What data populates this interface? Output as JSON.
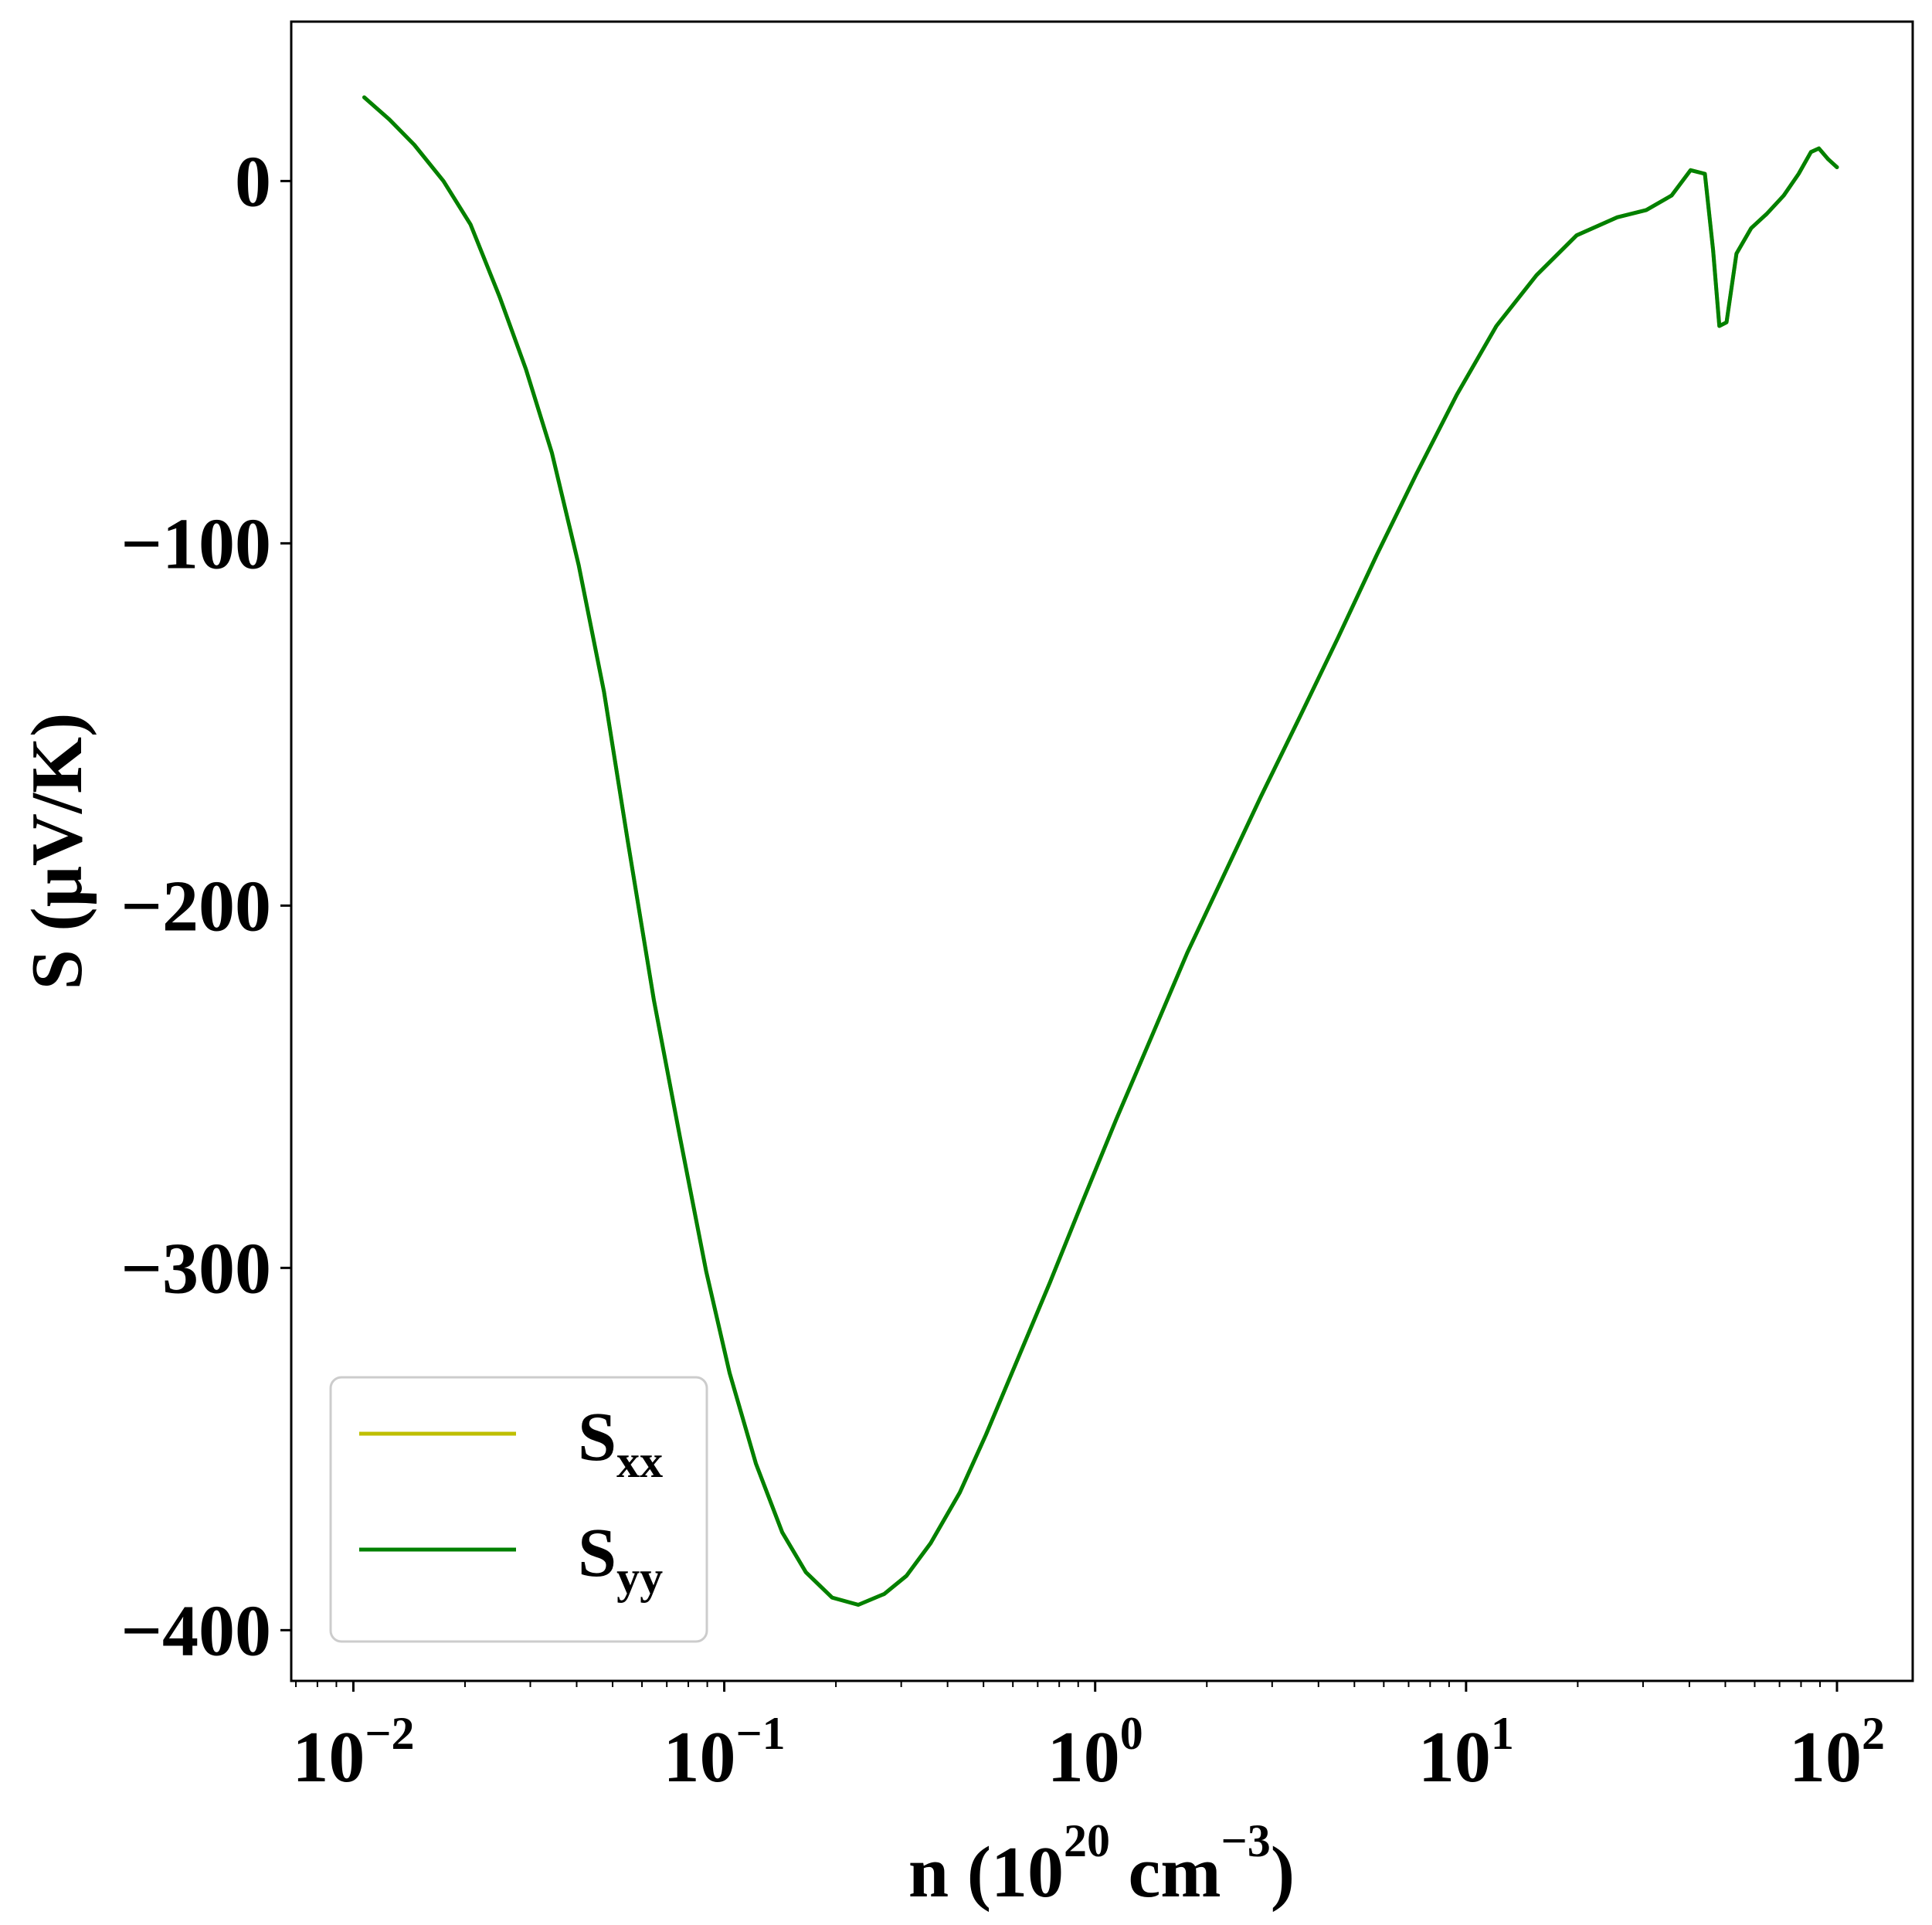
{
  "chart_data": {
    "type": "line",
    "xscale": "log",
    "xlabel": {
      "main": "n (10",
      "sup1": "20",
      "mid": " cm",
      "sup2": "−3",
      "end": ")"
    },
    "ylabel": "S (μV/K)",
    "xlim": [
      0.0068,
      160
    ],
    "ylim": [
      -414,
      44
    ],
    "x_ticks": [
      {
        "value": 0.01,
        "base": "10",
        "exp": "−2"
      },
      {
        "value": 0.1,
        "base": "10",
        "exp": "−1"
      },
      {
        "value": 1,
        "base": "10",
        "exp": "0"
      },
      {
        "value": 10,
        "base": "10",
        "exp": "1"
      },
      {
        "value": 100,
        "base": "10",
        "exp": "2"
      }
    ],
    "y_ticks": [
      {
        "value": 0,
        "label": "0"
      },
      {
        "value": -100,
        "label": "−100"
      },
      {
        "value": -200,
        "label": "−200"
      },
      {
        "value": -300,
        "label": "−300"
      },
      {
        "value": -400,
        "label": "−400"
      }
    ],
    "grid": false,
    "legend_position": "lower-left",
    "series": [
      {
        "name": "S",
        "name_sub": "xx",
        "color": "#bfbf00",
        "x": [
          0.0107,
          0.0125,
          0.0146,
          0.0175,
          0.0207,
          0.0248,
          0.0292,
          0.0343,
          0.0405,
          0.0474,
          0.0549,
          0.0646,
          0.076,
          0.0894,
          0.1034,
          0.1217,
          0.1433,
          0.166,
          0.1953,
          0.2298,
          0.27,
          0.3098,
          0.36,
          0.4316,
          0.5079,
          0.6192,
          0.7554,
          0.922,
          1.14,
          1.422,
          1.772,
          2.238,
          2.794,
          3.558,
          4.519,
          5.757,
          7.333,
          9.44,
          12.07,
          15.48,
          19.86,
          25.56,
          30.6,
          35.81,
          40.31,
          44.05,
          46.35,
          48.17,
          50.37,
          53.59,
          58.74,
          64.74,
          71.86,
          78.84,
          85.06,
          89.4,
          94.73,
          100.0
        ],
        "y": [
          23.1,
          17,
          10,
          0,
          -12,
          -32,
          -52,
          -75,
          -106,
          -141,
          -182,
          -226,
          -264,
          -301,
          -329,
          -354,
          -373,
          -384,
          -391,
          -393,
          -390,
          -385,
          -376,
          -362,
          -346,
          -325,
          -304,
          -282,
          -259,
          -236,
          -213,
          -191,
          -170,
          -148,
          -126,
          -103,
          -81,
          -59,
          -40,
          -26,
          -15,
          -10,
          -8,
          -4,
          3,
          2,
          -19,
          -40,
          -39,
          -20,
          -13,
          -9,
          -4,
          2,
          8,
          9,
          6,
          3.8
        ]
      },
      {
        "name": "S",
        "name_sub": "yy",
        "color": "#008000",
        "x": [
          0.0107,
          0.0125,
          0.0146,
          0.0175,
          0.0207,
          0.0248,
          0.0292,
          0.0343,
          0.0405,
          0.0474,
          0.0549,
          0.0646,
          0.076,
          0.0894,
          0.1034,
          0.1217,
          0.1433,
          0.166,
          0.1953,
          0.2298,
          0.27,
          0.3098,
          0.36,
          0.4316,
          0.5079,
          0.6192,
          0.7554,
          0.922,
          1.14,
          1.422,
          1.772,
          2.238,
          2.794,
          3.558,
          4.519,
          5.757,
          7.333,
          9.44,
          12.07,
          15.48,
          19.86,
          25.56,
          30.6,
          35.81,
          40.31,
          44.05,
          46.35,
          48.17,
          50.37,
          53.59,
          58.74,
          64.74,
          71.86,
          78.84,
          85.06,
          89.4,
          94.73,
          100.0
        ],
        "y": [
          23.1,
          17,
          10,
          0,
          -12,
          -32,
          -52,
          -75,
          -106,
          -141,
          -182,
          -226,
          -264,
          -301,
          -329,
          -354,
          -373,
          -384,
          -391,
          -393,
          -390,
          -385,
          -376,
          -362,
          -346,
          -325,
          -304,
          -282,
          -259,
          -236,
          -213,
          -191,
          -170,
          -148,
          -126,
          -103,
          -81,
          -59,
          -40,
          -26,
          -15,
          -10,
          -8,
          -4,
          3,
          2,
          -19,
          -40,
          -39,
          -20,
          -13,
          -9,
          -4,
          2,
          8,
          9,
          6,
          3.8
        ]
      }
    ]
  }
}
